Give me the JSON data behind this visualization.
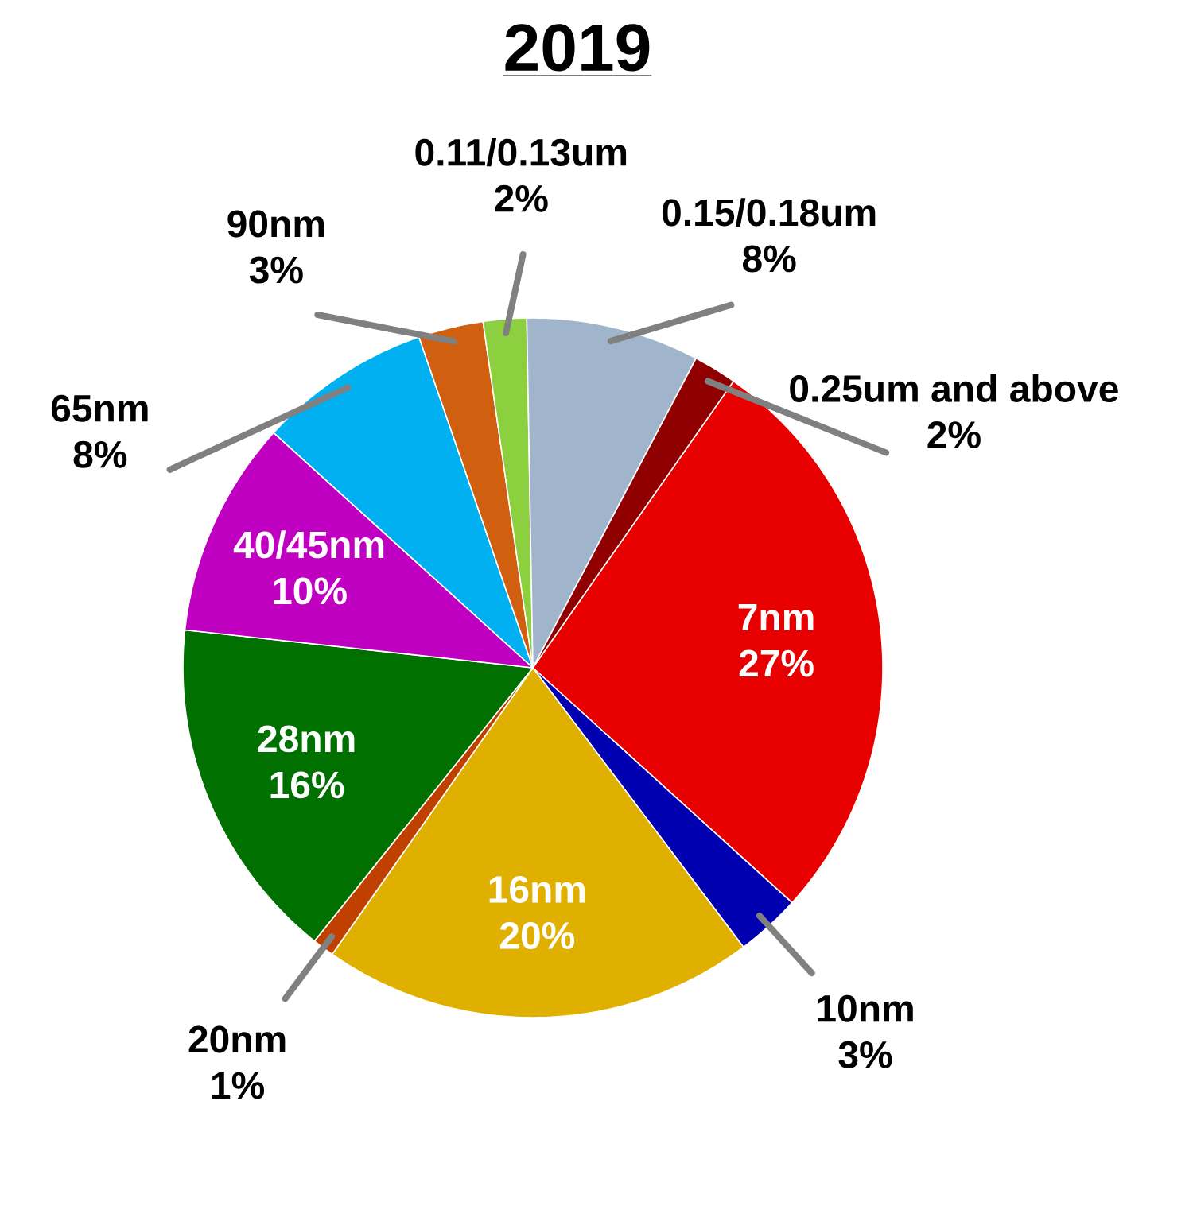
{
  "chart_data": {
    "type": "pie",
    "title": "2019",
    "categories": [
      "7nm",
      "10nm",
      "16nm",
      "20nm",
      "28nm",
      "40/45nm",
      "65nm",
      "90nm",
      "0.11/0.13um",
      "0.15/0.18um",
      "0.25um and above"
    ],
    "values": [
      27,
      3,
      20,
      1,
      16,
      10,
      8,
      3,
      2,
      8,
      2
    ],
    "value_labels": [
      "27%",
      "3%",
      "20%",
      "1%",
      "16%",
      "10%",
      "8%",
      "3%",
      "2%",
      "8%",
      "2%"
    ],
    "colors": [
      "#e80000",
      "#0000b0",
      "#e0b000",
      "#c04000",
      "#007000",
      "#c000c0",
      "#00b0f0",
      "#d06010",
      "#8cd040",
      "#a0b4cc",
      "#900000"
    ]
  }
}
